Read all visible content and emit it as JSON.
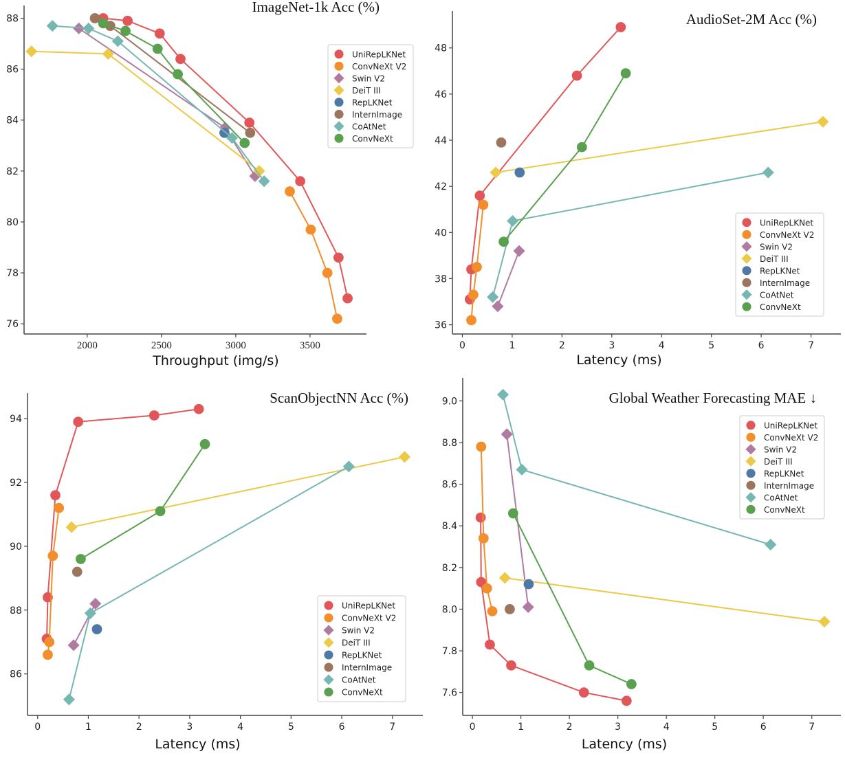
{
  "series_styles": [
    {
      "name": "UniRepLKNet",
      "color": "#e15759",
      "marker": "circle"
    },
    {
      "name": "ConvNeXt V2",
      "color": "#f28e2b",
      "marker": "circle"
    },
    {
      "name": "Swin V2",
      "color": "#b07aa1",
      "marker": "diamond"
    },
    {
      "name": "DeiT III",
      "color": "#edc948",
      "marker": "diamond"
    },
    {
      "name": "RepLKNet",
      "color": "#4e79a7",
      "marker": "circle"
    },
    {
      "name": "InternImage",
      "color": "#9c755f",
      "marker": "circle"
    },
    {
      "name": "CoAtNet",
      "color": "#76b7b2",
      "marker": "diamond"
    },
    {
      "name": "ConvNeXt",
      "color": "#59a14f",
      "marker": "circle"
    }
  ],
  "chart_data": [
    {
      "id": "imagenet",
      "type": "line",
      "title": "ImageNet-1k Acc (%)",
      "xlabel": "Throughput (img/s)",
      "ylabel": "",
      "xlim": [
        1575,
        3880
      ],
      "ylim": [
        75.6,
        88.5
      ],
      "xticks": [
        2000,
        2500,
        3000,
        3500
      ],
      "yticks": [
        76,
        78,
        80,
        82,
        84,
        86,
        88
      ],
      "xtick_labels": [
        "2000",
        "2500",
        "3000",
        "3500"
      ],
      "ytick_labels": [
        "76",
        "78",
        "80",
        "82",
        "84",
        "86",
        "88"
      ],
      "grid": false,
      "legend": "upper-right",
      "series": [
        {
          "name": "UniRepLKNet",
          "x": [
            2108,
            2272,
            2488,
            2628,
            3092,
            3434,
            3692,
            3753
          ],
          "y": [
            88.0,
            87.9,
            87.4,
            86.4,
            83.9,
            81.6,
            78.6,
            77.0
          ]
        },
        {
          "name": "ConvNeXt V2",
          "x": [
            3364,
            3505,
            3617,
            3683
          ],
          "y": [
            81.2,
            79.7,
            78.0,
            76.2
          ]
        },
        {
          "name": "Swin V2",
          "x": [
            1944,
            2928,
            3130
          ],
          "y": [
            87.6,
            83.7,
            81.8
          ]
        },
        {
          "name": "DeiT III",
          "x": [
            1625,
            2141,
            3158
          ],
          "y": [
            86.7,
            86.6,
            82.0
          ]
        },
        {
          "name": "RepLKNet",
          "x": [
            2924
          ],
          "y": [
            83.5
          ]
        },
        {
          "name": "InternImage",
          "x": [
            2052,
            2155,
            3097
          ],
          "y": [
            88.0,
            87.7,
            83.5
          ]
        },
        {
          "name": "CoAtNet",
          "x": [
            1766,
            2009,
            2206,
            2975,
            3191
          ],
          "y": [
            87.7,
            87.6,
            87.1,
            83.3,
            81.6
          ]
        },
        {
          "name": "ConvNeXt",
          "x": [
            2108,
            2258,
            2474,
            2610,
            3060
          ],
          "y": [
            87.8,
            87.5,
            86.8,
            85.8,
            83.1
          ]
        }
      ]
    },
    {
      "id": "audioset",
      "type": "line",
      "title": "AudioSet-2M Acc (%)",
      "xlabel": "Latency (ms)",
      "ylabel": "",
      "xlim": [
        -0.2,
        7.6
      ],
      "ylim": [
        35.6,
        49.6
      ],
      "xticks": [
        0,
        1,
        2,
        3,
        4,
        5,
        6,
        7
      ],
      "yticks": [
        36,
        38,
        40,
        42,
        44,
        46,
        48
      ],
      "xtick_labels": [
        "0",
        "1",
        "2",
        "3",
        "4",
        "5",
        "6",
        "7"
      ],
      "ytick_labels": [
        "36",
        "38",
        "40",
        "42",
        "44",
        "46",
        "48"
      ],
      "grid": false,
      "legend": "lower-right",
      "series": [
        {
          "name": "UniRepLKNet",
          "x": [
            0.15,
            0.18,
            0.35,
            2.3,
            3.18
          ],
          "y": [
            37.1,
            38.4,
            41.6,
            46.8,
            48.9
          ]
        },
        {
          "name": "ConvNeXt V2",
          "x": [
            0.18,
            0.22,
            0.29,
            0.42
          ],
          "y": [
            36.2,
            37.3,
            38.5,
            41.2
          ]
        },
        {
          "name": "Swin V2",
          "x": [
            0.71,
            1.14
          ],
          "y": [
            36.8,
            39.2
          ]
        },
        {
          "name": "DeiT III",
          "x": [
            0.67,
            7.24
          ],
          "y": [
            42.6,
            44.8
          ]
        },
        {
          "name": "RepLKNet",
          "x": [
            1.15
          ],
          "y": [
            42.6
          ]
        },
        {
          "name": "InternImage",
          "x": [
            0.78
          ],
          "y": [
            43.9
          ]
        },
        {
          "name": "CoAtNet",
          "x": [
            0.61,
            1.01,
            6.14
          ],
          "y": [
            37.2,
            40.5,
            42.6
          ]
        },
        {
          "name": "ConvNeXt",
          "x": [
            0.83,
            2.4,
            3.28
          ],
          "y": [
            39.6,
            43.7,
            46.9
          ]
        }
      ]
    },
    {
      "id": "scanobjectnn",
      "type": "line",
      "title": "ScanObjectNN Acc (%)",
      "xlabel": "Latency (ms)",
      "ylabel": "",
      "xlim": [
        -0.2,
        7.6
      ],
      "ylim": [
        84.7,
        94.8
      ],
      "xticks": [
        0,
        1,
        2,
        3,
        4,
        5,
        6,
        7
      ],
      "yticks": [
        86,
        88,
        90,
        92,
        94
      ],
      "xtick_labels": [
        "0",
        "1",
        "2",
        "3",
        "4",
        "5",
        "6",
        "7"
      ],
      "ytick_labels": [
        "86",
        "88",
        "90",
        "92",
        "94"
      ],
      "grid": false,
      "legend": "lower-right",
      "series": [
        {
          "name": "UniRepLKNet",
          "x": [
            0.18,
            0.2,
            0.35,
            0.8,
            2.3,
            3.18
          ],
          "y": [
            87.1,
            88.4,
            91.6,
            93.9,
            94.1,
            94.3
          ]
        },
        {
          "name": "ConvNeXt V2",
          "x": [
            0.2,
            0.23,
            0.3,
            0.42
          ],
          "y": [
            86.6,
            87.0,
            89.7,
            91.2
          ]
        },
        {
          "name": "Swin V2",
          "x": [
            0.71,
            1.14
          ],
          "y": [
            86.9,
            88.2
          ]
        },
        {
          "name": "DeiT III",
          "x": [
            0.67,
            7.24
          ],
          "y": [
            90.6,
            92.8
          ]
        },
        {
          "name": "RepLKNet",
          "x": [
            1.17
          ],
          "y": [
            87.4
          ]
        },
        {
          "name": "InternImage",
          "x": [
            0.78
          ],
          "y": [
            89.2
          ]
        },
        {
          "name": "CoAtNet",
          "x": [
            0.62,
            1.04,
            6.14
          ],
          "y": [
            85.2,
            87.9,
            92.5
          ]
        },
        {
          "name": "ConvNeXt",
          "x": [
            0.85,
            2.42,
            3.3
          ],
          "y": [
            89.6,
            91.1,
            93.2
          ]
        }
      ]
    },
    {
      "id": "weather",
      "type": "line",
      "title": "Global Weather Forecasting MAE ↓",
      "xlabel": "Latency (ms)",
      "ylabel": "",
      "xlim": [
        -0.2,
        7.6
      ],
      "ylim": [
        7.49,
        9.11
      ],
      "xticks": [
        0,
        1,
        2,
        3,
        4,
        5,
        6,
        7
      ],
      "yticks": [
        7.6,
        7.8,
        8.0,
        8.2,
        8.4,
        8.6,
        8.8,
        9.0
      ],
      "xtick_labels": [
        "0",
        "1",
        "2",
        "3",
        "4",
        "5",
        "6",
        "7"
      ],
      "ytick_labels": [
        "7.6",
        "7.8",
        "8.0",
        "8.2",
        "8.4",
        "8.6",
        "8.8",
        "9.0"
      ],
      "grid": false,
      "legend": "upper-right",
      "series": [
        {
          "name": "UniRepLKNet",
          "x": [
            0.17,
            0.18,
            0.36,
            0.8,
            2.3,
            3.18
          ],
          "y": [
            8.44,
            8.13,
            7.83,
            7.73,
            7.6,
            7.56
          ]
        },
        {
          "name": "ConvNeXt V2",
          "x": [
            0.18,
            0.23,
            0.3,
            0.41
          ],
          "y": [
            8.78,
            8.34,
            8.1,
            7.99
          ]
        },
        {
          "name": "Swin V2",
          "x": [
            0.71,
            1.15
          ],
          "y": [
            8.84,
            8.01
          ]
        },
        {
          "name": "DeiT III",
          "x": [
            0.67,
            7.26
          ],
          "y": [
            8.15,
            7.94
          ]
        },
        {
          "name": "RepLKNet",
          "x": [
            1.16
          ],
          "y": [
            8.12
          ]
        },
        {
          "name": "InternImage",
          "x": [
            0.77
          ],
          "y": [
            8.0
          ]
        },
        {
          "name": "CoAtNet",
          "x": [
            0.63,
            1.02,
            6.15
          ],
          "y": [
            9.03,
            8.67,
            8.31
          ]
        },
        {
          "name": "ConvNeXt",
          "x": [
            0.84,
            2.41,
            3.28
          ],
          "y": [
            8.46,
            7.73,
            7.64
          ]
        }
      ]
    }
  ]
}
